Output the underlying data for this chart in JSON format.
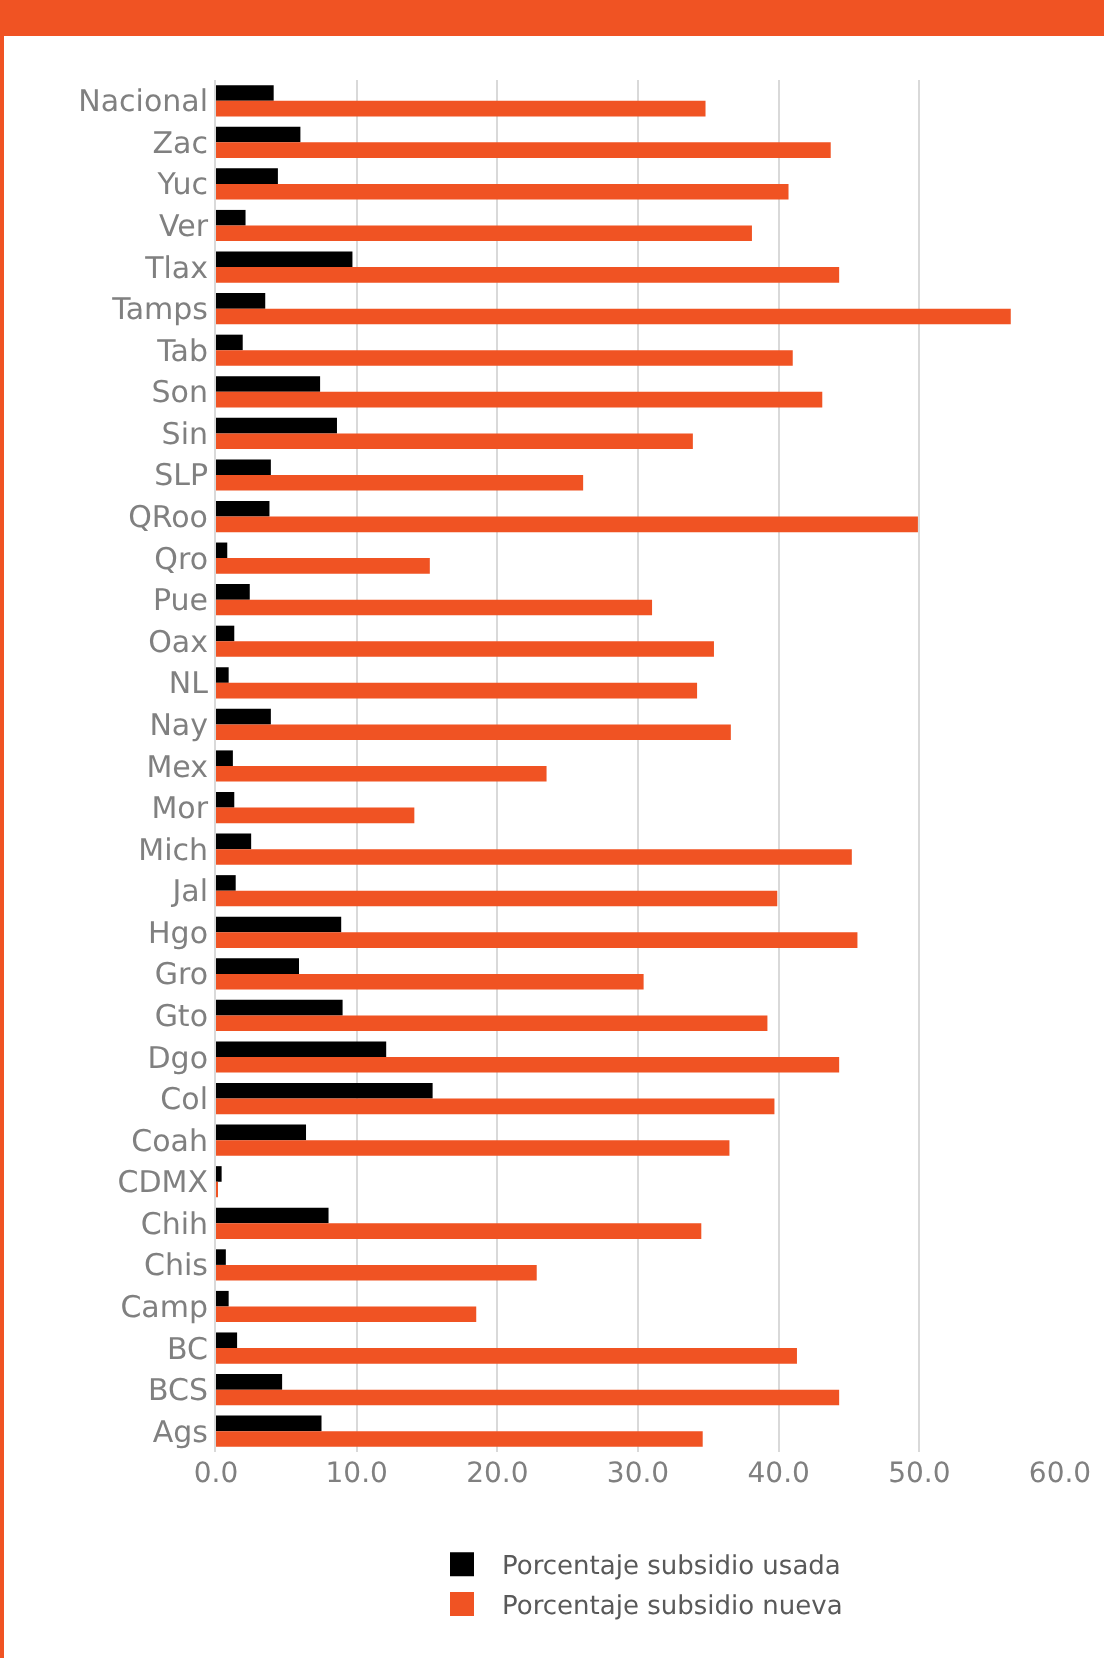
{
  "chart_data": {
    "type": "bar",
    "orientation": "horizontal",
    "categories": [
      "Nacional",
      "Zac",
      "Yuc",
      "Ver",
      "Tlax",
      "Tamps",
      "Tab",
      "Son",
      "Sin",
      "SLP",
      "QRoo",
      "Qro",
      "Pue",
      "Oax",
      "NL",
      "Nay",
      "Mex",
      "Mor",
      "Mich",
      "Jal",
      "Hgo",
      "Gro",
      "Gto",
      "Dgo",
      "Col",
      "Coah",
      "CDMX",
      "Chih",
      "Chis",
      "Camp",
      "BC",
      "BCS",
      "Ags"
    ],
    "series": [
      {
        "name": "Porcentaje subsidio usada",
        "color": "#000000",
        "values": [
          4.1,
          6.0,
          4.4,
          2.1,
          9.7,
          3.5,
          1.9,
          7.4,
          8.6,
          3.9,
          3.8,
          0.8,
          2.4,
          1.3,
          0.9,
          3.9,
          1.2,
          1.3,
          2.5,
          1.4,
          8.9,
          5.9,
          9.0,
          12.1,
          15.4,
          6.4,
          0.4,
          8.0,
          0.7,
          0.9,
          1.5,
          4.7,
          7.5
        ]
      },
      {
        "name": "Porcentaje subsidio nueva",
        "color": "#f05323",
        "values": [
          34.8,
          43.7,
          40.7,
          38.1,
          44.3,
          56.5,
          41.0,
          43.1,
          33.9,
          26.1,
          49.9,
          15.2,
          31.0,
          35.4,
          34.2,
          36.6,
          23.5,
          14.1,
          45.2,
          39.9,
          45.6,
          30.4,
          39.2,
          44.3,
          39.7,
          36.5,
          0.1,
          34.5,
          22.8,
          18.5,
          41.3,
          44.3,
          34.6
        ]
      }
    ],
    "xlim": [
      0,
      60
    ],
    "xticks": [
      {
        "value": 0,
        "label": "0.0"
      },
      {
        "value": 10,
        "label": "10.0"
      },
      {
        "value": 20,
        "label": "20.0"
      },
      {
        "value": 30,
        "label": "30.0"
      },
      {
        "value": 40,
        "label": "40.0"
      },
      {
        "value": 50,
        "label": "50.0"
      },
      {
        "value": 60,
        "label": "60.0"
      }
    ],
    "grid": "x",
    "legend": "bottom"
  }
}
